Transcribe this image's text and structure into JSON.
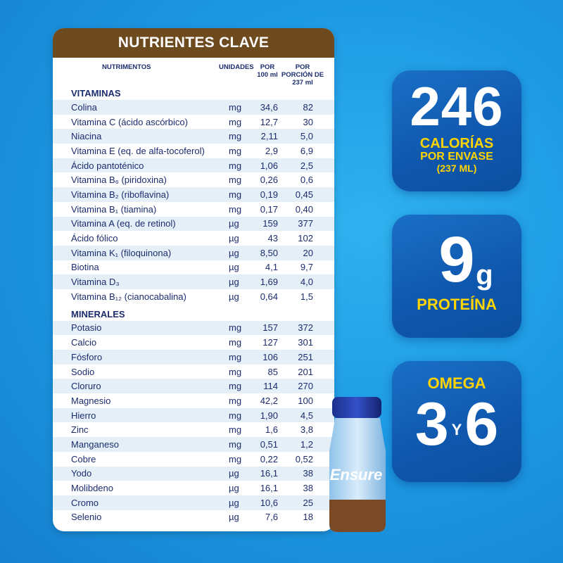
{
  "card": {
    "title": "NUTRIENTES CLAVE",
    "col_nutriment": "NUTRIMENTOS",
    "col_units": "UNIDADES",
    "col_per100": "POR 100 ml",
    "col_portion": "POR PORCIÓN DE 237 ml"
  },
  "vitamins": {
    "title": "VITAMINAS",
    "rows": [
      {
        "name": "Colina",
        "unit": "mg",
        "per100": "34,6",
        "portion": "82"
      },
      {
        "name": "Vitamina C (ácido ascórbico)",
        "unit": "mg",
        "per100": "12,7",
        "portion": "30"
      },
      {
        "name": "Niacina",
        "unit": "mg",
        "per100": "2,11",
        "portion": "5,0"
      },
      {
        "name": "Vitamina E (eq. de alfa-tocoferol)",
        "unit": "mg",
        "per100": "2,9",
        "portion": "6,9"
      },
      {
        "name": "Ácido pantoténico",
        "unit": "mg",
        "per100": "1,06",
        "portion": "2,5"
      },
      {
        "name": "Vitamina B₆ (piridoxina)",
        "unit": "mg",
        "per100": "0,26",
        "portion": "0,6"
      },
      {
        "name": "Vitamina B₂ (riboflavina)",
        "unit": "mg",
        "per100": "0,19",
        "portion": "0,45"
      },
      {
        "name": "Vitamina B₁ (tiamina)",
        "unit": "mg",
        "per100": "0,17",
        "portion": "0,40"
      },
      {
        "name": "Vitamina A (eq. de retinol)",
        "unit": "µg",
        "per100": "159",
        "portion": "377"
      },
      {
        "name": "Ácido fólico",
        "unit": "µg",
        "per100": "43",
        "portion": "102"
      },
      {
        "name": "Vitamina K₁ (filoquinona)",
        "unit": "µg",
        "per100": "8,50",
        "portion": "20"
      },
      {
        "name": "Biotina",
        "unit": "µg",
        "per100": "4,1",
        "portion": "9,7"
      },
      {
        "name": "Vitamina D₃",
        "unit": "µg",
        "per100": "1,69",
        "portion": "4,0"
      },
      {
        "name": "Vitamina B₁₂ (cianocabalina)",
        "unit": "µg",
        "per100": "0,64",
        "portion": "1,5"
      }
    ]
  },
  "minerals": {
    "title": "MINERALES",
    "rows": [
      {
        "name": "Potasio",
        "unit": "mg",
        "per100": "157",
        "portion": "372"
      },
      {
        "name": "Calcio",
        "unit": "mg",
        "per100": "127",
        "portion": "301"
      },
      {
        "name": "Fósforo",
        "unit": "mg",
        "per100": "106",
        "portion": "251"
      },
      {
        "name": "Sodio",
        "unit": "mg",
        "per100": "85",
        "portion": "201"
      },
      {
        "name": "Cloruro",
        "unit": "mg",
        "per100": "114",
        "portion": "270"
      },
      {
        "name": "Magnesio",
        "unit": "mg",
        "per100": "42,2",
        "portion": "100"
      },
      {
        "name": "Hierro",
        "unit": "mg",
        "per100": "1,90",
        "portion": "4,5"
      },
      {
        "name": "Zinc",
        "unit": "mg",
        "per100": "1,6",
        "portion": "3,8"
      },
      {
        "name": "Manganeso",
        "unit": "mg",
        "per100": "0,51",
        "portion": "1,2"
      },
      {
        "name": "Cobre",
        "unit": "mg",
        "per100": "0,22",
        "portion": "0,52"
      },
      {
        "name": "Yodo",
        "unit": "µg",
        "per100": "16,1",
        "portion": "38"
      },
      {
        "name": "Molibdeno",
        "unit": "µg",
        "per100": "16,1",
        "portion": "38"
      },
      {
        "name": "Cromo",
        "unit": "µg",
        "per100": "10,6",
        "portion": "25"
      },
      {
        "name": "Selenio",
        "unit": "µg",
        "per100": "7,6",
        "portion": "18"
      }
    ]
  },
  "badges": {
    "calories": {
      "number": "246",
      "line1": "CALORÍAS",
      "line2": "POR ENVASE",
      "line3": "(237 ML)"
    },
    "protein": {
      "number": "9",
      "unit": "g",
      "label": "PROTEÍNA"
    },
    "omega": {
      "label": "OMEGA",
      "num_a": "3",
      "conj": "Y",
      "num_b": "6"
    }
  },
  "product": {
    "brand": "Ensure"
  },
  "colors": {
    "background": "#1d9ae4",
    "header_brown": "#6e4a1f",
    "text_navy": "#1c2c6e",
    "stripe": "#e4eff8",
    "badge_blue": "#1060b4",
    "badge_yellow": "#ffd400"
  }
}
